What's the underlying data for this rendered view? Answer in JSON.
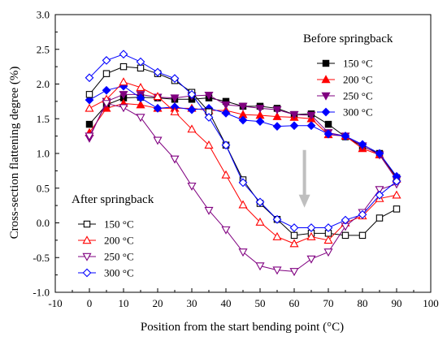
{
  "chart_data": {
    "type": "line",
    "xlabel": "Position from the start bending point (°C)",
    "ylabel": "Cross-section flattening degree (%)",
    "xlim": [
      -10,
      100
    ],
    "ylim": [
      -1.0,
      3.0
    ],
    "xticks": [
      -10,
      0,
      10,
      20,
      30,
      40,
      50,
      60,
      70,
      80,
      90,
      100
    ],
    "yticks": [
      -1.0,
      -0.5,
      0.0,
      0.5,
      1.0,
      1.5,
      2.0,
      2.5,
      3.0
    ],
    "x": [
      0,
      5,
      10,
      15,
      20,
      25,
      30,
      35,
      40,
      45,
      50,
      55,
      60,
      65,
      70,
      75,
      80,
      85,
      90
    ],
    "grid": false,
    "groups": [
      {
        "title": "Before springback",
        "fill": "solid",
        "series": [
          {
            "name": "150 °C",
            "color": "#000000",
            "marker": "square",
            "values": [
              1.42,
              1.7,
              1.8,
              1.81,
              1.8,
              1.78,
              1.78,
              1.8,
              1.75,
              1.68,
              1.68,
              1.65,
              1.56,
              1.57,
              1.42,
              1.24,
              1.1,
              1.0,
              0.65
            ]
          },
          {
            "name": "200 °C",
            "color": "#ff0000",
            "marker": "triangle-up",
            "values": [
              1.3,
              1.65,
              1.72,
              1.7,
              1.65,
              1.65,
              1.65,
              1.62,
              1.62,
              1.56,
              1.55,
              1.53,
              1.52,
              1.5,
              1.27,
              1.25,
              1.07,
              0.98,
              0.63
            ]
          },
          {
            "name": "250 °C",
            "color": "#800080",
            "marker": "triangle-down",
            "values": [
              1.22,
              1.75,
              1.85,
              1.85,
              1.81,
              1.8,
              1.83,
              1.84,
              1.7,
              1.68,
              1.65,
              1.63,
              1.56,
              1.55,
              1.3,
              1.25,
              1.11,
              0.98,
              0.62
            ]
          },
          {
            "name": "300 °C",
            "color": "#0000ff",
            "marker": "diamond",
            "values": [
              1.77,
              1.91,
              1.97,
              1.8,
              1.65,
              1.67,
              1.63,
              1.65,
              1.58,
              1.48,
              1.46,
              1.39,
              1.4,
              1.4,
              1.28,
              1.25,
              1.13,
              1.0,
              0.67
            ]
          }
        ]
      },
      {
        "title": "After springback",
        "fill": "hollow",
        "series": [
          {
            "name": "150 °C",
            "color": "#000000",
            "marker": "square",
            "values": [
              1.85,
              2.15,
              2.25,
              2.23,
              2.15,
              2.05,
              1.88,
              1.6,
              1.12,
              0.62,
              0.28,
              0.05,
              -0.18,
              -0.15,
              -0.15,
              -0.18,
              -0.18,
              0.07,
              0.2
            ]
          },
          {
            "name": "200 °C",
            "color": "#ff0000",
            "marker": "triangle-up",
            "values": [
              1.65,
              1.78,
              2.03,
              1.95,
              1.82,
              1.6,
              1.35,
              1.12,
              0.69,
              0.26,
              0.01,
              -0.2,
              -0.3,
              -0.2,
              -0.25,
              0.0,
              0.1,
              0.35,
              0.4
            ]
          },
          {
            "name": "250 °C",
            "color": "#800080",
            "marker": "triangle-down",
            "values": [
              1.25,
              1.72,
              1.66,
              1.52,
              1.19,
              0.92,
              0.53,
              0.18,
              -0.1,
              -0.42,
              -0.62,
              -0.68,
              -0.7,
              -0.52,
              -0.42,
              -0.05,
              0.15,
              0.48,
              0.56
            ]
          },
          {
            "name": "300 °C",
            "color": "#0000ff",
            "marker": "diamond",
            "values": [
              2.09,
              2.34,
              2.43,
              2.32,
              2.17,
              2.08,
              1.85,
              1.52,
              1.12,
              0.58,
              0.3,
              0.05,
              -0.07,
              -0.07,
              -0.07,
              0.04,
              0.12,
              0.4,
              0.6
            ]
          }
        ]
      }
    ],
    "annotations": [
      {
        "type": "arrow",
        "color": "#bfbfbf",
        "from": [
          63,
          1.05
        ],
        "to": [
          63,
          0.22
        ]
      }
    ]
  }
}
